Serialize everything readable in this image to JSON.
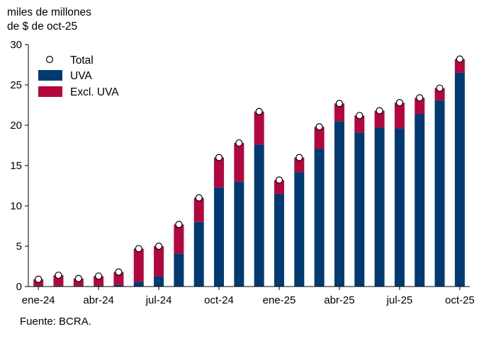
{
  "chart_data": {
    "type": "bar",
    "stacked": true,
    "ylabel_lines": [
      "miles de millones",
      "de $ de oct-25"
    ],
    "ylim": [
      0,
      30
    ],
    "yticks": [
      0,
      5,
      10,
      15,
      20,
      25,
      30
    ],
    "months": [
      "ene-24",
      "feb-24",
      "mar-24",
      "abr-24",
      "may-24",
      "jun-24",
      "jul-24",
      "ago-24",
      "sep-24",
      "oct-24",
      "nov-24",
      "dic-24",
      "ene-25",
      "feb-25",
      "mar-25",
      "abr-25",
      "may-25",
      "jun-25",
      "jul-25",
      "ago-25",
      "sep-25",
      "oct-25"
    ],
    "xtick_labels": [
      {
        "index": 0,
        "label": "ene-24"
      },
      {
        "index": 3,
        "label": "abr-24"
      },
      {
        "index": 6,
        "label": "jul-24"
      },
      {
        "index": 9,
        "label": "oct-24"
      },
      {
        "index": 12,
        "label": "ene-25"
      },
      {
        "index": 15,
        "label": "abr-25"
      },
      {
        "index": 18,
        "label": "jul-25"
      },
      {
        "index": 21,
        "label": "oct-25"
      }
    ],
    "series": [
      {
        "name": "UVA",
        "color": "#003a70",
        "values": [
          0.1,
          0.1,
          0.1,
          0.1,
          0.2,
          0.6,
          1.3,
          4.1,
          8.0,
          12.3,
          13.0,
          17.6,
          11.5,
          14.2,
          17.1,
          20.5,
          19.1,
          19.7,
          19.6,
          21.4,
          23.1,
          26.5
        ]
      },
      {
        "name": "Excl. UVA",
        "color": "#b2063e",
        "values": [
          0.8,
          1.3,
          0.9,
          1.2,
          1.6,
          4.1,
          3.7,
          3.6,
          3.0,
          3.7,
          4.8,
          4.1,
          1.7,
          1.8,
          2.7,
          2.2,
          2.1,
          2.1,
          3.2,
          2.0,
          1.5,
          1.7
        ]
      },
      {
        "name": "Total",
        "marker": "circle",
        "values": [
          0.9,
          1.4,
          1.0,
          1.3,
          1.8,
          4.7,
          5.0,
          7.7,
          11.0,
          16.0,
          17.8,
          21.7,
          13.2,
          16.0,
          19.8,
          22.7,
          21.2,
          21.8,
          22.8,
          23.4,
          24.6,
          28.2
        ]
      }
    ],
    "legend": {
      "placement": "top-left",
      "items": [
        "Total",
        "UVA",
        "Excl. UVA"
      ]
    }
  },
  "source": "Fuente: BCRA."
}
